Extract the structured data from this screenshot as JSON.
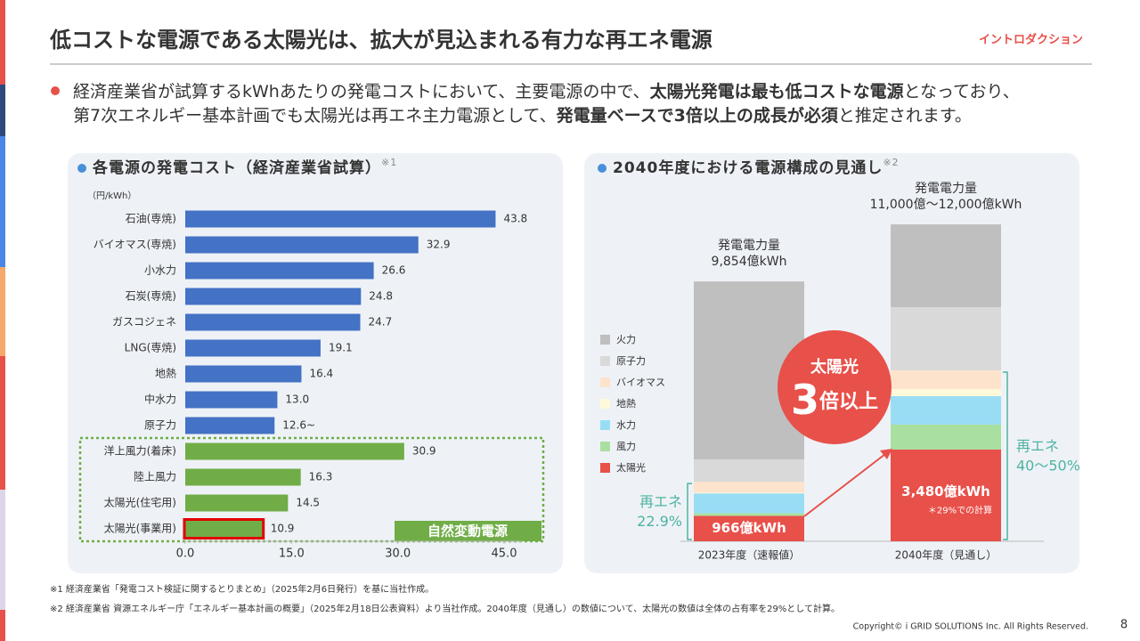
{
  "header": {
    "title": "低コストな電源である太陽光は、拡大が見込まれる有力な再エネ電源",
    "tag": "イントロダクション"
  },
  "bullet": {
    "lines": [
      [
        {
          "text": "経済産業省が試算するkWhあたりの発電コストにおいて、主要電源の中で、",
          "bold": false
        },
        {
          "text": "太陽光発電は最も低コストな電源",
          "bold": true
        },
        {
          "text": "となっており、",
          "bold": false
        }
      ],
      [
        {
          "text": "第7次エネルギー基本計画でも太陽光は再エネ主力電源として、",
          "bold": false
        },
        {
          "text": "発電量ベースで3倍以上の成長が必須",
          "bold": true
        },
        {
          "text": "と推定されます。",
          "bold": false
        }
      ]
    ]
  },
  "chart_data": [
    {
      "type": "hbar",
      "title": "各電源の発電コスト（経済産業省試算）",
      "title_note": "※1",
      "unit_label": "（円/kWh）",
      "categories": [
        "石油(専焼)",
        "バイオマス(専焼)",
        "小水力",
        "石炭(専焼)",
        "ガスコジェネ",
        "LNG(専焼)",
        "地熱",
        "中水力",
        "原子力",
        "洋上風力(着床)",
        "陸上風力",
        "太陽光(住宅用)",
        "太陽光(事業用)"
      ],
      "values": [
        43.8,
        32.9,
        26.6,
        24.8,
        24.7,
        19.1,
        16.4,
        13,
        12.6,
        30.9,
        16.3,
        14.5,
        10.9
      ],
      "value_labels": [
        "43.8",
        "32.9",
        "26.6",
        "24.8",
        "24.7",
        "19.1",
        "16.4",
        "13.0",
        "12.6~",
        "30.9",
        "16.3",
        "14.5",
        "10.9"
      ],
      "colors": [
        "#4472c4",
        "#4472c4",
        "#4472c4",
        "#4472c4",
        "#4472c4",
        "#4472c4",
        "#4472c4",
        "#4472c4",
        "#4472c4",
        "#70ad47",
        "#70ad47",
        "#70ad47",
        "#70ad47"
      ],
      "group": {
        "name": "自然変動電源",
        "categories": [
          "洋上風力(着床)",
          "陸上風力",
          "太陽光(住宅用)",
          "太陽光(事業用)"
        ],
        "color": "#70ad47"
      },
      "highlight": {
        "category": "太陽光(事業用)",
        "color": "#e00000"
      },
      "xlim": [
        0,
        45
      ],
      "xticks": [
        {
          "value": 0,
          "label": "0.0"
        },
        {
          "value": 15,
          "label": "15.0"
        },
        {
          "value": 30,
          "label": "30.0"
        },
        {
          "value": 45,
          "label": "45.0"
        }
      ]
    },
    {
      "type": "stacked_bar",
      "title": "2040年度における電源構成の見通し",
      "title_note": "※2",
      "categories": [
        "2023年度（速報値）",
        "2040年度（見通し）"
      ],
      "series": [
        {
          "name": "火力",
          "color": "#bfbfbf",
          "values": [
            6748,
            3139
          ]
        },
        {
          "name": "原子力",
          "color": "#d9d9d9",
          "values": [
            850,
            2396
          ]
        },
        {
          "name": "バイオマス",
          "color": "#fde3cc",
          "values": [
            410,
            709
          ]
        },
        {
          "name": "地熱",
          "color": "#fef9d9",
          "values": [
            30,
            270
          ]
        },
        {
          "name": "水力",
          "color": "#99ddf5",
          "values": [
            750,
            1080
          ]
        },
        {
          "name": "風力",
          "color": "#a9dfa0",
          "values": [
            100,
            945
          ]
        },
        {
          "name": "太陽光",
          "color": "#e8504a",
          "values": [
            966,
            3480
          ],
          "value_labels": [
            "966億kWh",
            "3,480億kWh"
          ],
          "note": [
            null,
            "＊29%での計算"
          ]
        }
      ],
      "total_labels": [
        [
          "発電電力量",
          "9,854億kWh"
        ],
        [
          "発電電力量",
          "11,000億～12,000億kWh"
        ]
      ],
      "renewable_labels": [
        {
          "label": "再エネ",
          "value": "22.9%"
        },
        {
          "label": "再エネ",
          "value": "40～50%"
        }
      ],
      "callout": {
        "label": "太陽光",
        "big": "3",
        "rest": "倍以上"
      }
    }
  ],
  "footnotes": [
    "※1 経済産業省「発電コスト検証に関するとりまとめ」（2025年2月6日発行）を基に当社作成。",
    "※2 経済産業省 資源エネルギー庁「エネルギー基本計画の概要」（2025年2月18日公表資料）より当社作成。2040年度（見通し）の数値について、太陽光の数値は全体の占有率を29%として計算。"
  ],
  "copyright": "Copyright© i GRID SOLUTIONS Inc. All Rights Reserved.",
  "page": "8"
}
